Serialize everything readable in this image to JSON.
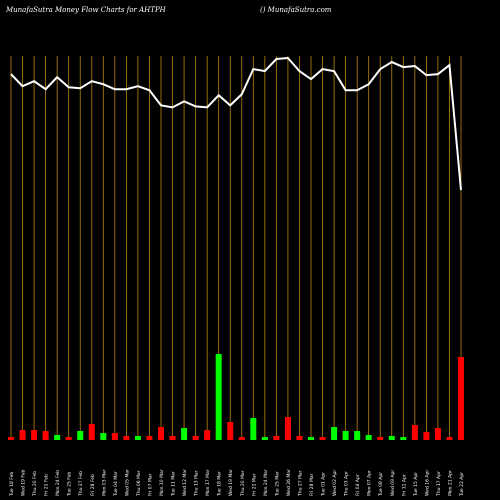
{
  "chart_data": {
    "type": "money-flow",
    "title": "MunafaSutra  Money Flow  Charts for AHTPH",
    "subtitle": "() MunafaSutra.com",
    "categories": [
      "Tue 18 Feb",
      "Wed 19 Feb",
      "Thu 20 Feb",
      "Fri 21 Feb",
      "Mon 24 Feb",
      "Tue 25 Feb",
      "Thu 27 Feb",
      "Fri 28 Feb",
      "Mon 03 Mar",
      "Tue 04 Mar",
      "Wed 05 Mar",
      "Thu 06 Mar",
      "Fri 07 Mar",
      "Mon 10 Mar",
      "Tue 11 Mar",
      "Wed 12 Mar",
      "Thu 13 Mar",
      "Mon 17 Mar",
      "Tue 18 Mar",
      "Wed 19 Mar",
      "Thu 20 Mar",
      "Fri 21 Mar",
      "Mon 24 Mar",
      "Tue 25 Mar",
      "Wed 26 Mar",
      "Thu 27 Mar",
      "Fri 28 Mar",
      "Tue 01 Apr",
      "Wed 02 Apr",
      "Thu 03 Apr",
      "Fri 04 Apr",
      "Mon 07 Apr",
      "Tue 08 Apr",
      "Wed 09 Apr",
      "Fri 11 Apr",
      "Tue 15 Apr",
      "Wed 16 Apr",
      "Thu 17 Apr",
      "Mon 21 Apr",
      "Tue 22 Apr"
    ],
    "line": {
      "color": "#ffffff",
      "values": [
        125,
        113,
        118,
        110,
        122,
        112,
        111,
        118,
        115,
        110,
        110,
        113,
        109,
        94,
        92,
        98,
        93,
        92,
        104,
        94,
        105,
        130,
        128,
        140,
        141,
        128,
        120,
        130,
        128,
        109,
        109,
        115,
        130,
        137,
        132,
        133,
        124,
        125,
        134,
        10
      ]
    },
    "bars": {
      "values": [
        3,
        10,
        10,
        9,
        5,
        3,
        9,
        16,
        7,
        7,
        4,
        4,
        4,
        13,
        4,
        12,
        4,
        10,
        86,
        18,
        3,
        22,
        3,
        4,
        23,
        4,
        3,
        3,
        13,
        9,
        9,
        5,
        3,
        4,
        3,
        15,
        8,
        12,
        3,
        83
      ],
      "colors": [
        "#ff0000",
        "#ff0000",
        "#ff0000",
        "#ff0000",
        "#00ff00",
        "#ff0000",
        "#00ff00",
        "#ff0000",
        "#00ff00",
        "#ff0000",
        "#ff0000",
        "#00ff00",
        "#ff0000",
        "#ff0000",
        "#ff0000",
        "#00ff00",
        "#ff0000",
        "#ff0000",
        "#00ff00",
        "#ff0000",
        "#ff0000",
        "#00ff00",
        "#00ff00",
        "#ff0000",
        "#ff0000",
        "#ff0000",
        "#00ff00",
        "#ff0000",
        "#00ff00",
        "#00ff00",
        "#00ff00",
        "#00ff00",
        "#ff0000",
        "#00ff00",
        "#00ff00",
        "#ff0000",
        "#ff0000",
        "#ff0000",
        "#ff0000",
        "#ff0000"
      ]
    },
    "gridline_color": "#b8860b"
  }
}
